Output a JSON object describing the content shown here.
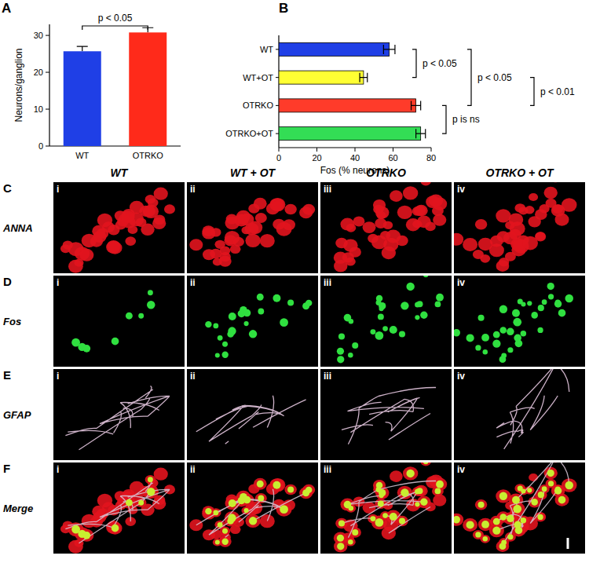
{
  "chart_data": [
    {
      "type": "bar",
      "panel": "A",
      "categories": [
        "WT",
        "OTRKO"
      ],
      "values": [
        25.7,
        30.8
      ],
      "errors": [
        1.3,
        1.3
      ],
      "colors": [
        "#1f3fe6",
        "#ff2a1a"
      ],
      "y_label": "Neurons/ganglion",
      "ylim": [
        0,
        33
      ],
      "yticks": [
        0,
        10,
        20,
        30
      ],
      "annotations": [
        {
          "text": "p < 0.05",
          "from": "WT",
          "to": "OTRKO"
        }
      ]
    },
    {
      "type": "bar",
      "panel": "B",
      "orientation": "horizontal",
      "categories": [
        "WT",
        "WT+OT",
        "OTRKO",
        "OTRKO+OT"
      ],
      "values": [
        58,
        44.5,
        72,
        74.5
      ],
      "errors": [
        3,
        2,
        2.5,
        2.5
      ],
      "colors": [
        "#1f3fe6",
        "#ffff33",
        "#ff3b2a",
        "#33dd55"
      ],
      "x_label": "Fos (% neurons)",
      "xlim": [
        0,
        80
      ],
      "xticks": [
        0,
        20,
        40,
        60,
        80
      ],
      "annotations": [
        {
          "text": "p < 0.05",
          "from": "WT",
          "to": "WT+OT"
        },
        {
          "text": "p < 0.05",
          "from": "WT",
          "to": "OTRKO"
        },
        {
          "text": "p < 0.01",
          "from": "WT+OT",
          "to": "OTRKO"
        },
        {
          "text": "p is ns",
          "from": "OTRKO",
          "to": "OTRKO+OT"
        }
      ]
    }
  ],
  "figure": {
    "columns": [
      "WT",
      "WT + OT",
      "OTRKO",
      "OTRKO + OT"
    ],
    "rows": [
      {
        "panel": "C",
        "label": "ANNA"
      },
      {
        "panel": "D",
        "label": "Fos"
      },
      {
        "panel": "E",
        "label": "GFAP"
      },
      {
        "panel": "F",
        "label": "Merge"
      }
    ],
    "subpanels": [
      "i",
      "ii",
      "iii",
      "iv"
    ]
  }
}
